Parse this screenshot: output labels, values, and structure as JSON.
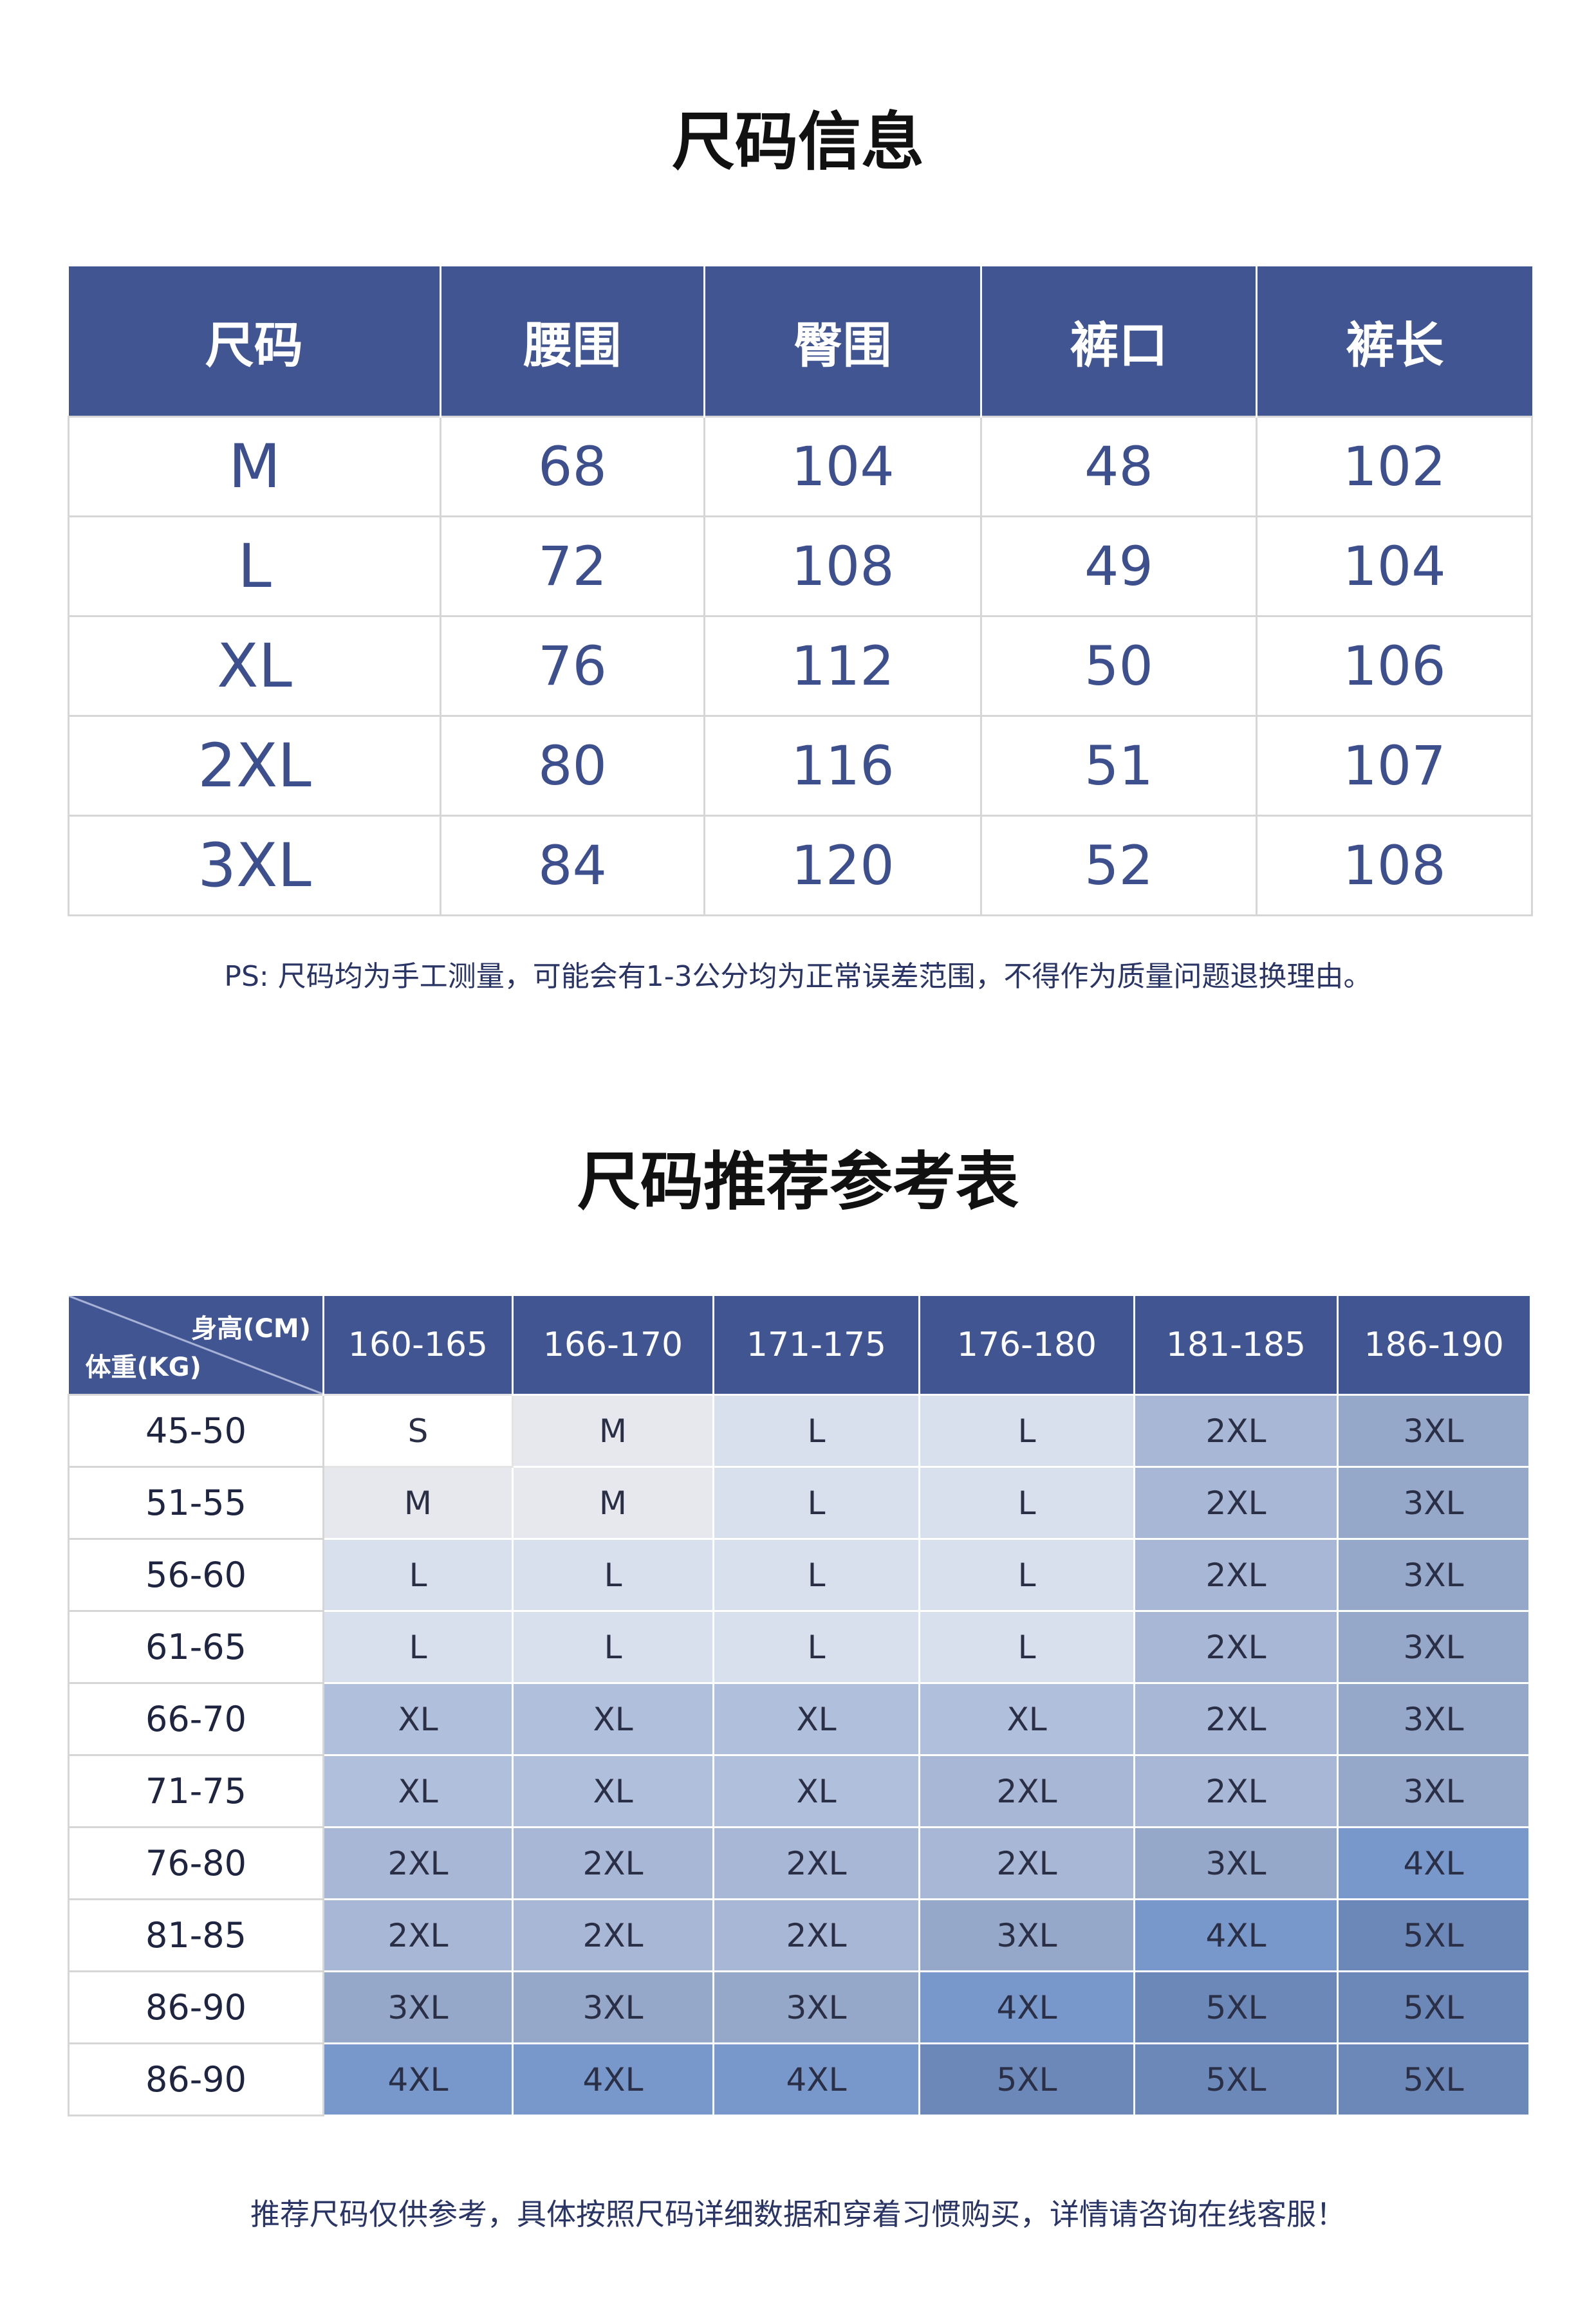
{
  "size_info": {
    "title": "尺码信息",
    "headers": [
      "尺码",
      "腰围",
      "臀围",
      "裤口",
      "裤长"
    ],
    "rows": [
      [
        "M",
        "68",
        "104",
        "48",
        "102"
      ],
      [
        "L",
        "72",
        "108",
        "49",
        "104"
      ],
      [
        "XL",
        "76",
        "112",
        "50",
        "106"
      ],
      [
        "2XL",
        "80",
        "116",
        "51",
        "107"
      ],
      [
        "3XL",
        "84",
        "120",
        "52",
        "108"
      ]
    ],
    "note": "PS: 尺码均为手工测量，可能会有1-3公分均为正常误差范围，不得作为质量问题退换理由。"
  },
  "recommendation": {
    "title": "尺码推荐参考表",
    "corner_height_label": "身高(CM)",
    "corner_weight_label": "体重(KG)",
    "height_headers": [
      "160-165",
      "166-170",
      "171-175",
      "176-180",
      "181-185",
      "186-190"
    ],
    "rows": [
      {
        "weight": "45-50",
        "sizes": [
          "S",
          "M",
          "L",
          "L",
          "2XL",
          "3XL"
        ]
      },
      {
        "weight": "51-55",
        "sizes": [
          "M",
          "M",
          "L",
          "L",
          "2XL",
          "3XL"
        ]
      },
      {
        "weight": "56-60",
        "sizes": [
          "L",
          "L",
          "L",
          "L",
          "2XL",
          "3XL"
        ]
      },
      {
        "weight": "61-65",
        "sizes": [
          "L",
          "L",
          "L",
          "L",
          "2XL",
          "3XL"
        ]
      },
      {
        "weight": "66-70",
        "sizes": [
          "XL",
          "XL",
          "XL",
          "XL",
          "2XL",
          "3XL"
        ]
      },
      {
        "weight": "71-75",
        "sizes": [
          "XL",
          "XL",
          "XL",
          "2XL",
          "2XL",
          "3XL"
        ]
      },
      {
        "weight": "76-80",
        "sizes": [
          "2XL",
          "2XL",
          "2XL",
          "2XL",
          "3XL",
          "4XL"
        ]
      },
      {
        "weight": "81-85",
        "sizes": [
          "2XL",
          "2XL",
          "2XL",
          "3XL",
          "4XL",
          "5XL"
        ]
      },
      {
        "weight": "86-90",
        "sizes": [
          "3XL",
          "3XL",
          "3XL",
          "4XL",
          "5XL",
          "5XL"
        ]
      },
      {
        "weight": "86-90",
        "sizes": [
          "4XL",
          "4XL",
          "4XL",
          "5XL",
          "5XL",
          "5XL"
        ]
      }
    ],
    "note": "推荐尺码仅供参考，具体按照尺码详细数据和穿着习惯购买，详情请咨询在线客服！"
  }
}
